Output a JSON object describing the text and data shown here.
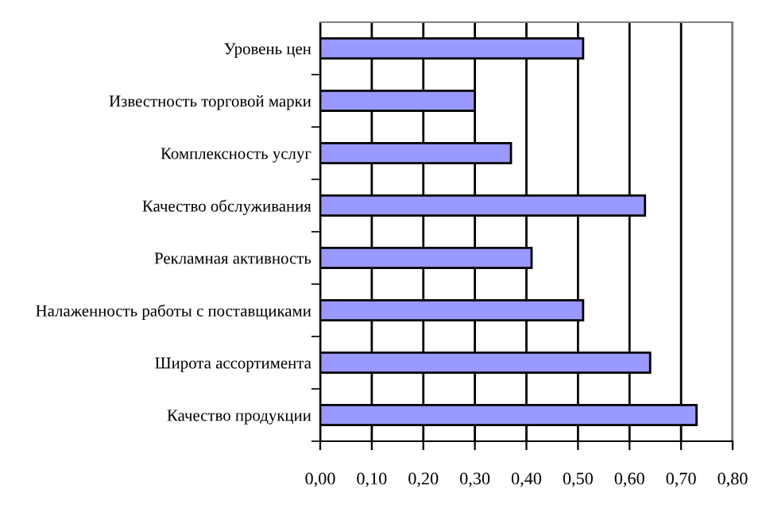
{
  "chart_data": {
    "type": "bar",
    "orientation": "horizontal",
    "categories": [
      "Уровень цен",
      "Известность торговой марки",
      "Комплексность услуг",
      "Качество обслуживания",
      "Рекламная активность",
      "Налаженность работы с поставщиками",
      "Широта ассортимента",
      "Качество продукции"
    ],
    "values": [
      0.51,
      0.3,
      0.37,
      0.63,
      0.41,
      0.51,
      0.64,
      0.73
    ],
    "color": "#9999ff",
    "xlim": [
      0,
      0.8
    ],
    "xticks": [
      {
        "value": 0,
        "label": "0,00"
      },
      {
        "value": 0.1,
        "label": "0,10"
      },
      {
        "value": 0.2,
        "label": "0,20"
      },
      {
        "value": 0.3,
        "label": "0,30"
      },
      {
        "value": 0.4,
        "label": "0,40"
      },
      {
        "value": 0.5,
        "label": "0,50"
      },
      {
        "value": 0.6,
        "label": "0,60"
      },
      {
        "value": 0.7,
        "label": "0,70"
      },
      {
        "value": 0.8,
        "label": "0,80"
      }
    ],
    "grid": "x",
    "legend": false
  }
}
